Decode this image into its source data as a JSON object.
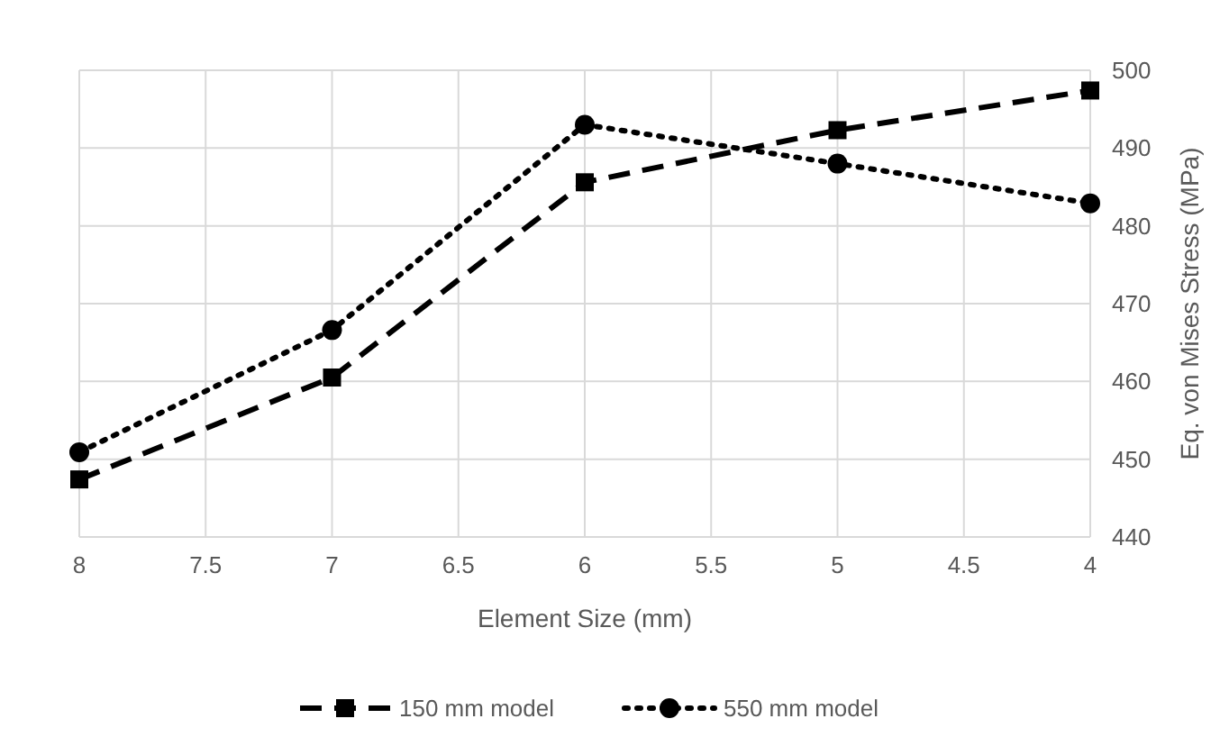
{
  "chart_data": {
    "type": "line",
    "xlabel": "Element Size (mm)",
    "ylabel": "Eq. von Mises Stress (MPa)",
    "x": [
      8,
      7,
      6,
      5,
      4
    ],
    "xlim": [
      8,
      4
    ],
    "xticks": [
      8,
      7.5,
      7,
      6.5,
      6,
      5.5,
      5,
      4.5,
      4
    ],
    "ylim": [
      440,
      500
    ],
    "yticks": [
      440,
      450,
      460,
      470,
      480,
      490,
      500
    ],
    "grid": true,
    "legend": "bottom",
    "series": [
      {
        "name": "150 mm model",
        "color": "#000000",
        "values": [
          447.4,
          460.5,
          485.6,
          492.3,
          497.4
        ],
        "marker": "square",
        "line_style": "dashed"
      },
      {
        "name": "550 mm model",
        "color": "#000000",
        "values": [
          450.9,
          466.6,
          493.0,
          488.0,
          482.9
        ],
        "marker": "circle",
        "line_style": "dotted"
      }
    ]
  }
}
